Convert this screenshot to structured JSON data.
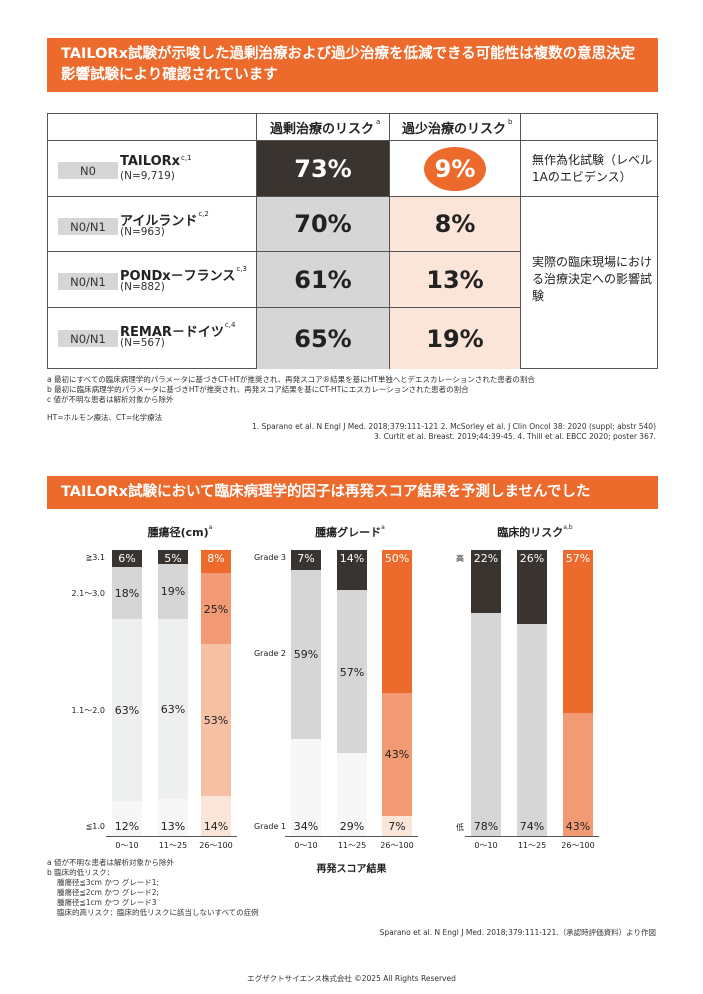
{
  "section1": {
    "title": "TAILORx試験が示唆した過剰治療および過少治療を低減できる可能性は複数の意思決定影響試験により確認されています"
  },
  "table": {
    "col_over": "過剰治療のリスク",
    "col_over_sup": "a",
    "col_under": "過少治療のリスク",
    "col_under_sup": "b",
    "rows": [
      {
        "tag": "N0",
        "name": "TAILORx",
        "sup": "c,1",
        "n": "(N=9,719)",
        "over": "73%",
        "under": "9%"
      },
      {
        "tag": "N0/N1",
        "name": "アイルランド",
        "sup": "c,2",
        "n": "(N=963)",
        "over": "70%",
        "under": "8%"
      },
      {
        "tag": "N0/N1",
        "name": "PONDx－フランス",
        "sup": "c,3",
        "n": "(N=882)",
        "over": "61%",
        "under": "13%"
      },
      {
        "tag": "N0/N1",
        "name": "REMAR－ドイツ",
        "sup": "c,4",
        "n": "(N=567)",
        "over": "65%",
        "under": "19%"
      }
    ],
    "note1": "無作為化試験（レベル1Aのエビデンス）",
    "note2": "実際の臨床現場における治療決定への影響試験"
  },
  "footnotes1": {
    "a": "a 最初にすべての臨床病理学的パラメータに基づきCT-HTが推奨され、再発スコア®結果を基にHT単独へとデエスカレーションされた患者の割合",
    "b": "b 最初に臨床病理学的パラメータに基づきHTが推奨され、再発スコア結果を基にCT-HTにエスカレーションされた患者の割合",
    "c": "c 値が不明な患者は解析対象から除外",
    "abbr": "HT=ホルモン療法、CT=化学療法",
    "ref1": "1. Sparano et al. N Engl J Med. 2018;379:111-121  2. McSorley et al. J Clin Oncol 38: 2020 (suppl; abstr 540)",
    "ref2": "3. Curtit et al. Breast. 2019;44:39-45.  4. Thill et al. EBCC 2020; poster 367."
  },
  "section2": {
    "title": "TAILORx試験において臨床病理学的因子は再発スコア結果を予測しませんでした"
  },
  "colors": {
    "orange": "#ec6a2c",
    "dark": "#3a3431",
    "gray": "#d6d6d6",
    "light_peach": "#fbe4d8"
  },
  "chart_data": [
    {
      "type": "bar",
      "title": "腫瘍径(cm)",
      "title_sup": "a",
      "categories": [
        "0～10",
        "11～25",
        "26～100"
      ],
      "stack_labels": [
        "≦1.0",
        "1.1～2.0",
        "2.1～3.0",
        "≧3.1"
      ],
      "series": [
        {
          "name": "≦1.0",
          "values": [
            12,
            13,
            14
          ]
        },
        {
          "name": "1.1～2.0",
          "values": [
            63,
            63,
            53
          ]
        },
        {
          "name": "2.1～3.0",
          "values": [
            18,
            19,
            25
          ]
        },
        {
          "name": "≧3.1",
          "values": [
            6,
            5,
            8
          ]
        }
      ],
      "ylim": [
        0,
        100
      ]
    },
    {
      "type": "bar",
      "title": "腫瘍グレード",
      "title_sup": "a",
      "categories": [
        "0～10",
        "11～25",
        "26～100"
      ],
      "stack_labels": [
        "Grade 1",
        "Grade 2",
        "Grade 3"
      ],
      "series": [
        {
          "name": "Grade 1",
          "values": [
            34,
            29,
            7
          ]
        },
        {
          "name": "Grade 2",
          "values": [
            59,
            57,
            43
          ]
        },
        {
          "name": "Grade 3",
          "values": [
            7,
            14,
            50
          ]
        }
      ],
      "ylim": [
        0,
        100
      ]
    },
    {
      "type": "bar",
      "title": "臨床的リスク",
      "title_sup": "a,b",
      "categories": [
        "0～10",
        "11～25",
        "26～100"
      ],
      "stack_labels": [
        "低",
        "高"
      ],
      "series": [
        {
          "name": "低",
          "values": [
            78,
            74,
            43
          ]
        },
        {
          "name": "高",
          "values": [
            22,
            26,
            57
          ]
        }
      ],
      "ylim": [
        0,
        100
      ]
    }
  ],
  "xaxis_title": "再発スコア結果",
  "footnotes2": {
    "a": "a 値が不明な患者は解析対象から除外",
    "b": "b 臨床的低リスク：",
    "b1": "腫瘍径≦3cm かつ グレード1;",
    "b2": "腫瘍径≦2cm かつ グレード2;",
    "b3": "腫瘍径≦1cm かつ グレード3",
    "b4": "臨床的高リスク：臨床的低リスクに該当しないすべての症例",
    "ref": "Sparano et al. N Engl J Med. 2018;379:111-121.（承認時評価資料）より作図"
  },
  "footer": "エグザクトサイエンス株式会社  ©2025 All Rights Reserved"
}
